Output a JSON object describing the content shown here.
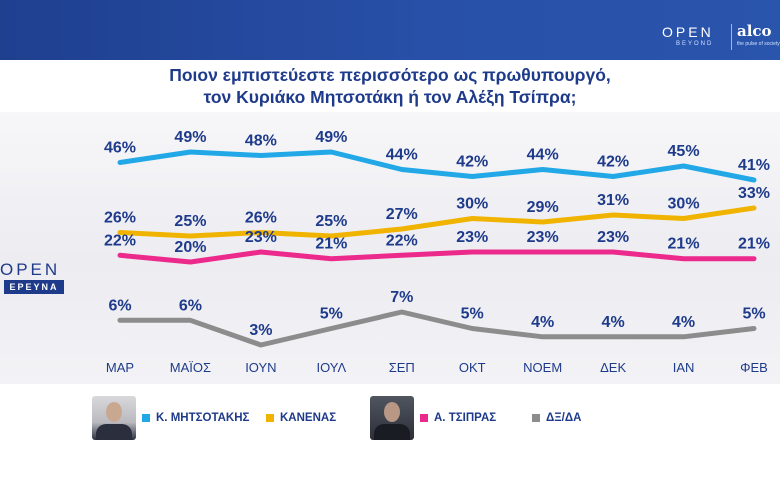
{
  "header": {
    "brand_open": "OPEN",
    "brand_beyond": "BEYOND",
    "brand_alco": "alco",
    "brand_tagline": "the pulse of society"
  },
  "side_logo": {
    "open": "OPEN",
    "ereuna": "ΕΡΕΥΝΑ"
  },
  "colors": {
    "mitsotakis": "#22a8e6",
    "kanenas": "#f0b400",
    "tsipras": "#ec2a8c",
    "dxda": "#8c8c8c",
    "label": "#1e3a8a"
  },
  "legend": {
    "mitsotakis": "Κ. ΜΗΤΣΟΤΑΚΗΣ",
    "kanenas": "ΚΑΝΕΝΑΣ",
    "tsipras": "Α. ΤΣΙΠΡΑΣ",
    "dxda": "ΔΞ/ΔΑ"
  },
  "chart_data": {
    "type": "line",
    "title": "Ποιον εμπιστεύεστε περισσότερο ως πρωθυπουργό,\nτον Κυριάκο Μητσοτάκη ή τον Αλέξη Τσίπρα;",
    "categories": [
      "ΜΑΡ",
      "ΜΑΪΟΣ",
      "ΙΟΥΝ",
      "ΙΟΥΛ",
      "ΣΕΠ",
      "ΟΚΤ",
      "ΝΟΕΜ",
      "ΔΕΚ",
      "ΙΑΝ",
      "ΦΕΒ"
    ],
    "series": [
      {
        "name": "Κ. ΜΗΤΣΟΤΑΚΗΣ",
        "key": "mitsotakis",
        "values": [
          46,
          49,
          48,
          49,
          44,
          42,
          44,
          42,
          45,
          41
        ]
      },
      {
        "name": "ΚΑΝΕΝΑΣ",
        "key": "kanenas",
        "values": [
          26,
          25,
          26,
          25,
          27,
          30,
          29,
          31,
          30,
          33
        ]
      },
      {
        "name": "Α. ΤΣΙΠΡΑΣ",
        "key": "tsipras",
        "values": [
          22,
          20,
          23,
          21,
          22,
          23,
          23,
          23,
          21,
          21
        ]
      },
      {
        "name": "ΔΞ/ΔΑ",
        "key": "dxda",
        "values": [
          6,
          6,
          3,
          5,
          7,
          5,
          4,
          4,
          4,
          5
        ]
      }
    ],
    "value_suffix": "%",
    "grid": false,
    "legend_position": "bottom"
  }
}
